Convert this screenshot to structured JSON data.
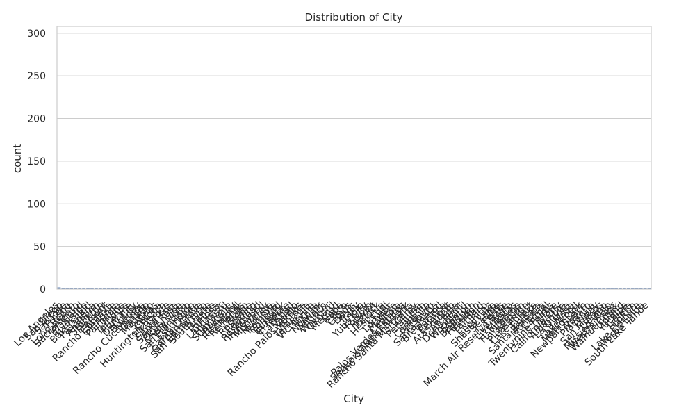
{
  "chart_data": {
    "type": "bar",
    "title": "Distribution of City",
    "xlabel": "City",
    "ylabel": "count",
    "ylim": [
      0,
      308
    ],
    "yticks": [
      0,
      50,
      100,
      150,
      200,
      250,
      300
    ],
    "grid": true,
    "legend": "none",
    "bar_color": "#4c72b0",
    "categories": [
      "Los Angeles",
      "San Diego",
      "San Jose",
      "Fresno",
      "Long Beach",
      "Sacramento",
      "Oakland",
      "Riverside",
      "Bakersfield",
      "Pasadena",
      "Anaheim",
      "Stockton",
      "Fremont",
      "Rancho Cordova",
      "Glendale",
      "Palmdale",
      "Irvine",
      "Torrance",
      "Fontana",
      "Daly City",
      "Downey",
      "Rancho Cucamonga",
      "Ontario",
      "Modesto",
      "Salinas",
      "Corona",
      "Huntington Beach",
      "Elk Grove",
      "Santa Ana",
      "Santa Rosa",
      "Oceanside",
      "Chula Vista",
      "San Francisco",
      "Escondido",
      "Santa Clarita",
      "Garden Grove",
      "San Bernardino",
      "South Gate",
      "Orange",
      "Pomona",
      "Lancaster",
      "Hayward",
      "Sunnyvale",
      "Berkeley",
      "Richmond",
      "Redlands",
      "Rialto",
      "Roseville",
      "Redding",
      "Rosemead",
      "Inglewood",
      "Monterey",
      "Murrieta",
      "Ramona",
      "Concord",
      "Burbank",
      "El Monte",
      "Carlsbad",
      "Vallejo",
      "Rancho Palos Verdes",
      "Ventura",
      "Temecula",
      "Victorville",
      "Visalia",
      "Norwalk",
      "Antioch",
      "Whittier",
      "Oxnard",
      "Merced",
      "Napa",
      "Chico",
      "Clovis",
      "Davis",
      "Tracy",
      "Indio",
      "Yuba City",
      "Folsom",
      "Hemet",
      "Turlock",
      "Hesperia",
      "Lodi",
      "Lompoc",
      "Madera",
      "Capitola",
      "Palos Verdes Estates",
      "Sequoia National Park",
      "Rancho Santa Margarita",
      "Gilroy",
      "Petaluma",
      "Tustin",
      "Camarillo",
      "Pittsburg",
      "Santa Maria",
      "Brentwood",
      "Pacifica",
      "Belmont",
      "Atascadero",
      "Arcadia",
      "Dana Point",
      "Woodland",
      "Stanton",
      "Blairsden",
      "Fullerton",
      "Fairfield",
      "Chino",
      "Encinitas",
      "Shasta Lake",
      "Seaside",
      "Perris",
      "March Air Reserve Base",
      "Livermore",
      "Milpitas",
      "Hawthorne",
      "Kerman",
      "Pleasanton",
      "Lake Forest",
      "Eureka",
      "Santa Barbara",
      "Monrovia",
      "Carmel",
      "Twentynine Palms",
      "Tulare",
      "California City",
      "Alhambra",
      "La Quinta",
      "La Mesa",
      "Lakewood",
      "Menlo Park",
      "Newport Beach",
      "Novato",
      "Placentia",
      "Poway",
      "San Marcos",
      "Delano",
      "Mission Viejo",
      "Westminster",
      "Walnut Creek",
      "Upland",
      "Yucaipa",
      "Goleta",
      "Colton",
      "Lake Elsinore",
      "Yorba Linda",
      "South Lake Tahoe"
    ],
    "values": [
      2,
      1,
      1,
      1,
      1,
      1,
      1,
      1,
      1,
      1,
      1,
      1,
      1,
      1,
      1,
      1,
      1,
      1,
      1,
      1,
      1,
      1,
      1,
      1,
      1,
      1,
      1,
      1,
      1,
      1,
      1,
      1,
      1,
      1,
      1,
      1,
      1,
      1,
      1,
      1,
      1,
      1,
      1,
      1,
      1,
      1,
      1,
      1,
      1,
      1,
      1,
      1,
      1,
      1,
      1,
      1,
      1,
      1,
      1,
      1,
      1,
      1,
      1,
      1,
      1,
      1,
      1,
      1,
      1,
      1,
      1,
      1,
      1,
      1,
      1,
      1,
      1,
      1,
      1,
      1,
      1,
      1,
      1,
      1,
      1,
      1,
      1,
      1,
      1,
      1,
      1,
      1,
      1,
      1,
      1,
      1,
      1,
      1,
      1,
      1,
      1,
      1,
      1,
      1,
      1,
      1,
      1,
      1,
      1,
      1,
      1,
      1,
      1,
      1,
      1,
      1,
      1,
      1,
      1,
      1,
      1,
      1,
      1,
      1,
      1,
      1,
      1,
      1,
      1,
      1,
      1,
      1,
      1,
      1,
      1,
      1,
      1,
      1,
      1,
      1,
      1,
      1,
      1,
      1
    ]
  }
}
